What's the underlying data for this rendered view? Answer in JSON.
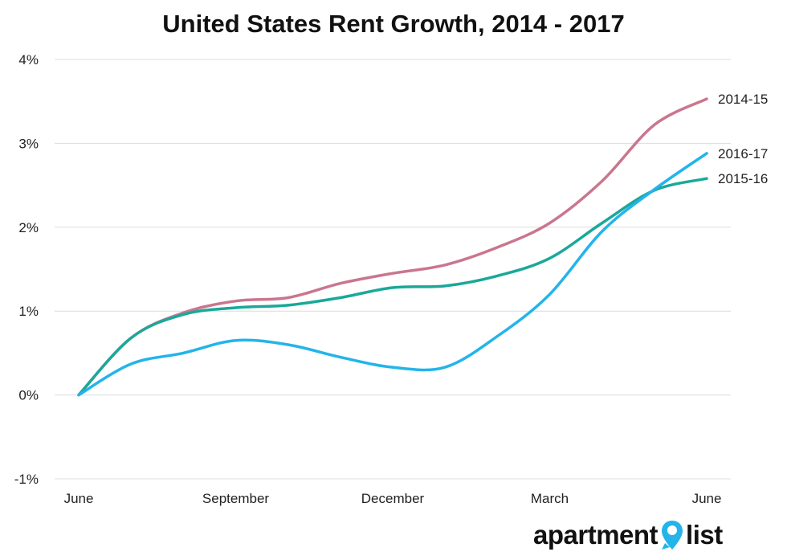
{
  "chart_data": {
    "type": "line",
    "title": "United States Rent Growth, 2014 - 2017",
    "xlabel": "",
    "ylabel": "",
    "x": [
      0,
      1,
      2,
      3,
      4,
      5,
      6,
      7,
      8,
      9,
      10,
      11,
      12
    ],
    "x_tick_labels": [
      {
        "x": 0,
        "label": "June"
      },
      {
        "x": 3,
        "label": "September"
      },
      {
        "x": 6,
        "label": "December"
      },
      {
        "x": 9,
        "label": "March"
      },
      {
        "x": 12,
        "label": "June"
      }
    ],
    "ylim": [
      -1,
      4
    ],
    "y_ticks": [
      -1,
      0,
      1,
      2,
      3,
      4
    ],
    "y_tick_labels": [
      "-1%",
      "0%",
      "1%",
      "2%",
      "3%",
      "4%"
    ],
    "grid": true,
    "legend": "end-of-line labels",
    "series": [
      {
        "name": "2014-15",
        "color": "#c9768e",
        "values": [
          0,
          0.68,
          0.98,
          1.12,
          1.16,
          1.33,
          1.45,
          1.55,
          1.76,
          2.05,
          2.55,
          3.22,
          3.53
        ]
      },
      {
        "name": "2016-17",
        "color": "#23b4ea",
        "values": [
          0,
          0.37,
          0.5,
          0.65,
          0.6,
          0.45,
          0.33,
          0.33,
          0.7,
          1.2,
          1.95,
          2.45,
          2.88
        ]
      },
      {
        "name": "2015-16",
        "color": "#1aa89a",
        "values": [
          0,
          0.68,
          0.96,
          1.04,
          1.07,
          1.16,
          1.28,
          1.3,
          1.42,
          1.63,
          2.05,
          2.44,
          2.58
        ]
      }
    ]
  },
  "branding": {
    "logo_word1": "apartment",
    "logo_word2": "list"
  }
}
